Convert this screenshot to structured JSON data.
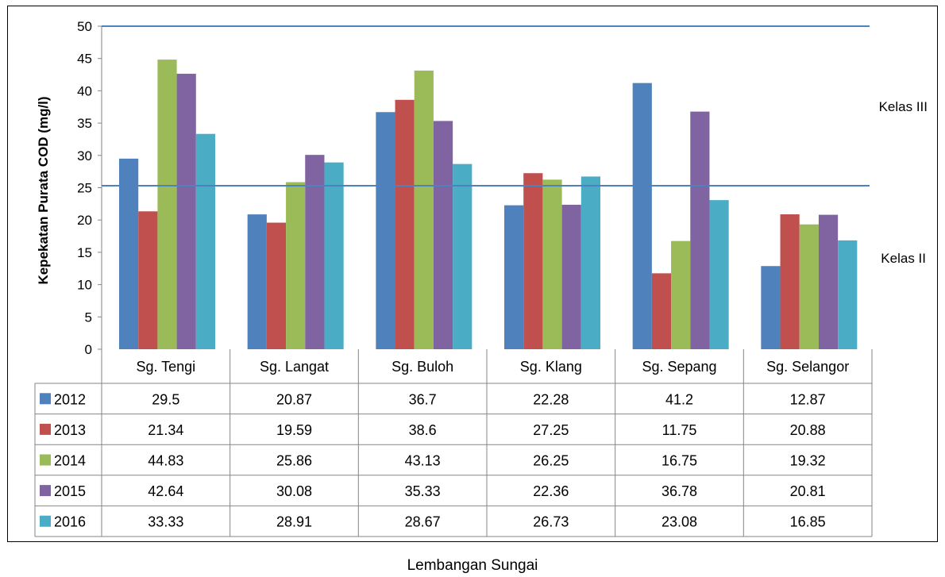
{
  "chart_data": {
    "type": "bar",
    "title": "",
    "xlabel": "Lembangan Sungai",
    "ylabel": "Kepekatan Purata COD (mg/l)",
    "ylim": [
      0,
      50
    ],
    "yticks": [
      0,
      5,
      10,
      15,
      20,
      25,
      30,
      35,
      40,
      45,
      50
    ],
    "grid": false,
    "legend": "data-table-left",
    "categories": [
      "Sg. Tengi",
      "Sg. Langat",
      "Sg. Buloh",
      "Sg. Klang",
      "Sg. Sepang",
      "Sg. Selangor"
    ],
    "series": [
      {
        "name": "2012",
        "color": "#4f81bd",
        "values": [
          29.5,
          20.87,
          36.7,
          22.28,
          41.2,
          12.87
        ],
        "labels": [
          "29.5",
          "20.87",
          "36.7",
          "22.28",
          "41.2",
          "12.87"
        ]
      },
      {
        "name": "2013",
        "color": "#c0504d",
        "values": [
          21.34,
          19.59,
          38.6,
          27.25,
          11.75,
          20.88
        ],
        "labels": [
          "21.34",
          "19.59",
          "38.6",
          "27.25",
          "11.75",
          "20.88"
        ]
      },
      {
        "name": "2014",
        "color": "#9bbb59",
        "values": [
          44.83,
          25.86,
          43.13,
          26.25,
          16.75,
          19.32
        ],
        "labels": [
          "44.83",
          "25.86",
          "43.13",
          "26.25",
          "16.75",
          "19.32"
        ]
      },
      {
        "name": "2015",
        "color": "#8064a2",
        "values": [
          42.64,
          30.08,
          35.33,
          22.36,
          36.78,
          20.81
        ],
        "labels": [
          "42.64",
          "30.08",
          "35.33",
          "22.36",
          "36.78",
          "20.81"
        ]
      },
      {
        "name": "2016",
        "color": "#4bacc6",
        "values": [
          33.33,
          28.91,
          28.67,
          26.73,
          23.08,
          16.85
        ],
        "labels": [
          "33.33",
          "28.91",
          "28.67",
          "26.73",
          "23.08",
          "16.85"
        ]
      }
    ],
    "reference_lines": [
      {
        "label": "Kelas III",
        "value": 50,
        "color": "#4f81bd"
      },
      {
        "label": "Kelas II",
        "value": 25.3,
        "color": "#4f81bd"
      }
    ]
  }
}
